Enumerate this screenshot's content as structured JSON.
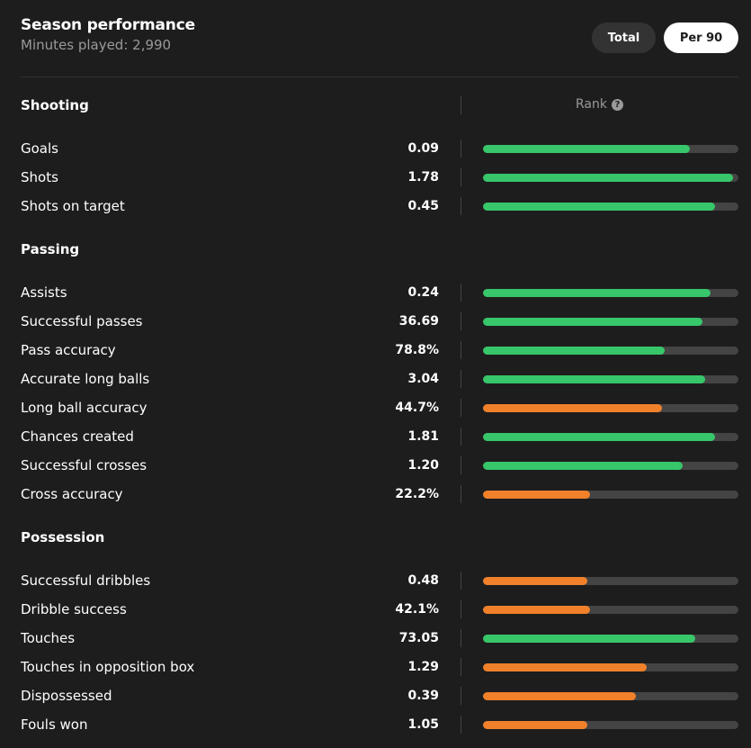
{
  "header": {
    "title": "Season performance",
    "subtitle": "Minutes played: 2,990"
  },
  "toggles": {
    "total_label": "Total",
    "per90_label": "Per 90",
    "selected": "Per 90"
  },
  "rank_label": "Rank",
  "colors": {
    "good": "#37c66a",
    "weak": "#f0812a",
    "track": "#444444"
  },
  "sections": [
    {
      "title": "Shooting",
      "rows": [
        {
          "label": "Goals",
          "value": "0.09",
          "rank_pct": 81,
          "tier": "good"
        },
        {
          "label": "Shots",
          "value": "1.78",
          "rank_pct": 98,
          "tier": "good"
        },
        {
          "label": "Shots on target",
          "value": "0.45",
          "rank_pct": 91,
          "tier": "good"
        }
      ]
    },
    {
      "title": "Passing",
      "rows": [
        {
          "label": "Assists",
          "value": "0.24",
          "rank_pct": 89,
          "tier": "good"
        },
        {
          "label": "Successful passes",
          "value": "36.69",
          "rank_pct": 86,
          "tier": "good"
        },
        {
          "label": "Pass accuracy",
          "value": "78.8%",
          "rank_pct": 71,
          "tier": "good"
        },
        {
          "label": "Accurate long balls",
          "value": "3.04",
          "rank_pct": 87,
          "tier": "good"
        },
        {
          "label": "Long ball accuracy",
          "value": "44.7%",
          "rank_pct": 70,
          "tier": "weak"
        },
        {
          "label": "Chances created",
          "value": "1.81",
          "rank_pct": 91,
          "tier": "good"
        },
        {
          "label": "Successful crosses",
          "value": "1.20",
          "rank_pct": 78,
          "tier": "good"
        },
        {
          "label": "Cross accuracy",
          "value": "22.2%",
          "rank_pct": 42,
          "tier": "weak"
        }
      ]
    },
    {
      "title": "Possession",
      "rows": [
        {
          "label": "Successful dribbles",
          "value": "0.48",
          "rank_pct": 41,
          "tier": "weak"
        },
        {
          "label": "Dribble success",
          "value": "42.1%",
          "rank_pct": 42,
          "tier": "weak"
        },
        {
          "label": "Touches",
          "value": "73.05",
          "rank_pct": 83,
          "tier": "good"
        },
        {
          "label": "Touches in opposition box",
          "value": "1.29",
          "rank_pct": 64,
          "tier": "weak"
        },
        {
          "label": "Dispossessed",
          "value": "0.39",
          "rank_pct": 60,
          "tier": "weak"
        },
        {
          "label": "Fouls won",
          "value": "1.05",
          "rank_pct": 41,
          "tier": "weak"
        }
      ]
    }
  ]
}
